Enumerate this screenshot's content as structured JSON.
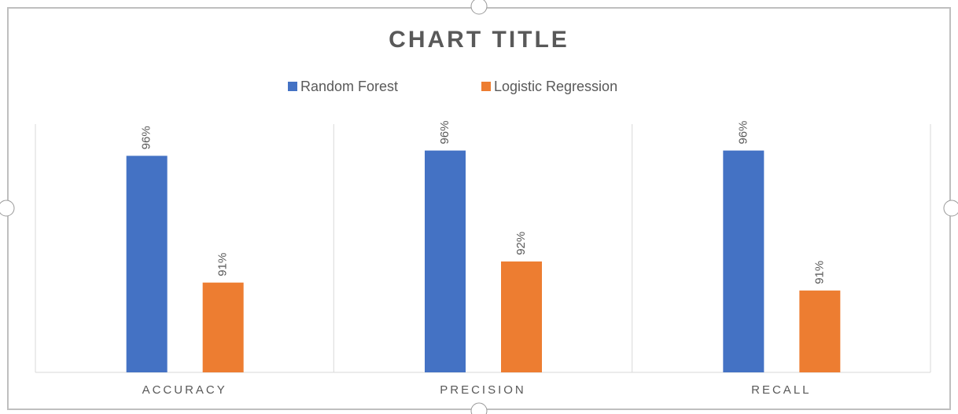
{
  "chart_data": {
    "type": "bar",
    "title": "CHART TITLE",
    "categories": [
      "ACCURACY",
      "PRECISION",
      "RECALL"
    ],
    "series": [
      {
        "name": "Random Forest",
        "color": "#4472c4",
        "values": [
          95.9,
          96.1,
          96.1
        ],
        "value_labels": [
          "96%",
          "96%",
          "96%"
        ]
      },
      {
        "name": "Logistic Regression",
        "color": "#ed7d31",
        "values": [
          91.1,
          91.9,
          90.8
        ],
        "value_labels": [
          "91%",
          "92%",
          "91%"
        ]
      }
    ],
    "ylim": [
      87.7,
      97.1
    ],
    "legend": "top"
  }
}
